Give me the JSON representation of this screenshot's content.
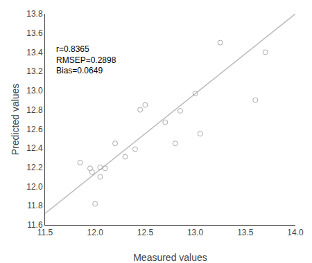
{
  "chart_data": {
    "type": "scatter",
    "xlabel": "Measured values",
    "ylabel": "Predicted values",
    "annotation": {
      "text": "r=0.8365\nRMSEP=0.2898\nBias=0.0649",
      "x": 11.6,
      "y": 13.5
    },
    "series": [
      {
        "type": "line",
        "color": "#bbbbbb",
        "line_style": "solid",
        "x": [
          11.5,
          14.0
        ],
        "values": [
          11.72,
          13.8
        ]
      },
      {
        "type": "scatter",
        "color": "#aaaaaa",
        "marker": "circle-open",
        "x": [
          11.85,
          11.95,
          11.97,
          12.0,
          12.05,
          12.05,
          12.1,
          12.2,
          12.3,
          12.4,
          12.45,
          12.5,
          12.7,
          12.8,
          12.85,
          13.0,
          13.05,
          13.25,
          13.6,
          13.7
        ],
        "values": [
          12.25,
          12.19,
          12.15,
          11.82,
          12.1,
          12.2,
          12.19,
          12.45,
          12.31,
          12.39,
          12.8,
          12.85,
          12.67,
          12.45,
          12.79,
          12.97,
          12.55,
          13.5,
          12.9,
          13.4
        ]
      }
    ],
    "xlim": [
      11.5,
      14.0
    ],
    "ylim": [
      11.6,
      13.8
    ],
    "xticks": [
      11.5,
      {
        "value": 12.0,
        "label": "12.0"
      },
      12.5,
      {
        "value": 13.0,
        "label": "13.0"
      },
      13.5,
      {
        "value": 14.0,
        "label": "14.0"
      }
    ],
    "yticks": [
      11.6,
      11.8,
      {
        "value": 12.0,
        "label": "12.0"
      },
      12.2,
      12.4,
      12.6,
      12.8,
      {
        "value": 13.0,
        "label": "13.0"
      },
      13.2,
      13.4,
      13.6,
      13.8
    ],
    "grid": false
  }
}
